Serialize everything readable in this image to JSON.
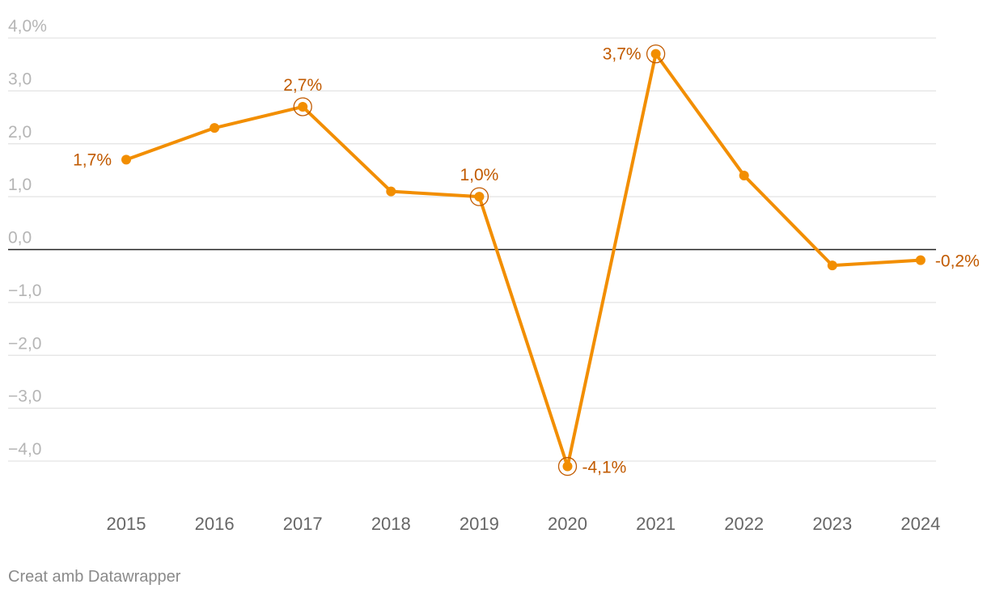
{
  "chart_data": {
    "type": "line",
    "x": [
      "2015",
      "2016",
      "2017",
      "2018",
      "2019",
      "2020",
      "2021",
      "2022",
      "2023",
      "2024"
    ],
    "series": [
      {
        "values": [
          1.7,
          2.3,
          2.7,
          1.1,
          1.0,
          -4.1,
          3.7,
          1.4,
          -0.3,
          -0.2
        ]
      }
    ],
    "ylim": [
      -4.0,
      4.0
    ],
    "y_ticks": [
      4.0,
      3.0,
      2.0,
      1.0,
      0.0,
      -1.0,
      -2.0,
      -3.0,
      -4.0
    ],
    "y_tick_labels": [
      "4,0%",
      "3,0",
      "2,0",
      "1,0",
      "0,0",
      "−1,0",
      "−2,0",
      "−3,0",
      "−4,0"
    ],
    "grid": true,
    "zero_line": true,
    "highlighted": [
      {
        "year": "2015",
        "label": "1,7%",
        "ring": false,
        "pos": "left"
      },
      {
        "year": "2017",
        "label": "2,7%",
        "ring": true,
        "pos": "above"
      },
      {
        "year": "2019",
        "label": "1,0%",
        "ring": true,
        "pos": "above"
      },
      {
        "year": "2020",
        "label": "-4,1%",
        "ring": true,
        "pos": "right"
      },
      {
        "year": "2021",
        "label": "3,7%",
        "ring": true,
        "pos": "left"
      },
      {
        "year": "2024",
        "label": "-0,2%",
        "ring": false,
        "pos": "right"
      }
    ],
    "colors": {
      "line": "#f28e00",
      "label": "#c15a00",
      "grid": "#e3e3e3",
      "zero": "#222222"
    }
  },
  "footer": {
    "credit": "Creat amb Datawrapper"
  }
}
